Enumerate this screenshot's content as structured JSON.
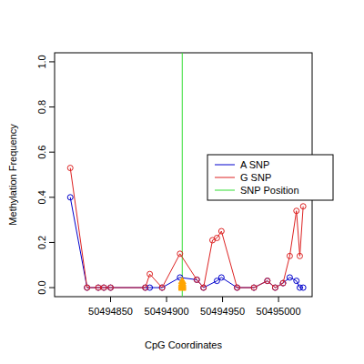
{
  "chart_data": {
    "type": "line",
    "x_label": "CpG Coordinates",
    "y_label": "Methylation Frequency",
    "xlim": [
      50494800,
      50495030
    ],
    "ylim": [
      -0.04,
      1.04
    ],
    "xticks": [
      50494850,
      50494900,
      50494950,
      50495000
    ],
    "yticks": [
      {
        "value": 0,
        "label": "0.0"
      },
      0.2,
      0.4,
      0.6,
      0.8,
      {
        "value": 1,
        "label": "1.0"
      }
    ],
    "legend": "right",
    "marker": "circle",
    "series": [
      {
        "name": "A SNP",
        "color": "#0000cc",
        "x": [
          50494814,
          50494829,
          50494839,
          50494844,
          50494850,
          50494881,
          50494885,
          50494896,
          50494912,
          50494927,
          50494933,
          50494945,
          50494949,
          50494963,
          50494978,
          50494990,
          50494997,
          50495004,
          50495010,
          50495016,
          50495019,
          50495022
        ],
        "values": [
          0.4,
          0,
          0,
          0,
          0,
          0,
          0,
          0,
          0.045,
          0.035,
          0,
          0.03,
          0.045,
          0,
          0,
          0.03,
          0,
          0.02,
          0.045,
          0.03,
          0,
          0
        ]
      },
      {
        "name": "G SNP",
        "color": "#dd2222",
        "x": [
          50494814,
          50494829,
          50494839,
          50494844,
          50494850,
          50494881,
          50494885,
          50494896,
          50494912,
          50494927,
          50494933,
          50494941,
          50494945,
          50494949,
          50494963,
          50494978,
          50494990,
          50494997,
          50495004,
          50495010,
          50495016,
          50495019,
          50495022
        ],
        "values": [
          0.53,
          0,
          0,
          0,
          0,
          0,
          0.06,
          0,
          0.15,
          0.035,
          0,
          0.21,
          0.22,
          0.25,
          0,
          0,
          0.03,
          0,
          0.02,
          0.14,
          0.34,
          0.14,
          0.36
        ]
      }
    ],
    "snp": {
      "name": "SNP Position",
      "color": "#33dd33",
      "x": 50494914
    },
    "snp_reads": {
      "color": "#ffa500",
      "marker": "triangle",
      "x": [
        50494914,
        50494914,
        50494914,
        50494914,
        50494914,
        50494914
      ],
      "values": [
        0,
        0.005,
        0.01,
        0.015,
        0.02,
        0.03
      ]
    }
  }
}
